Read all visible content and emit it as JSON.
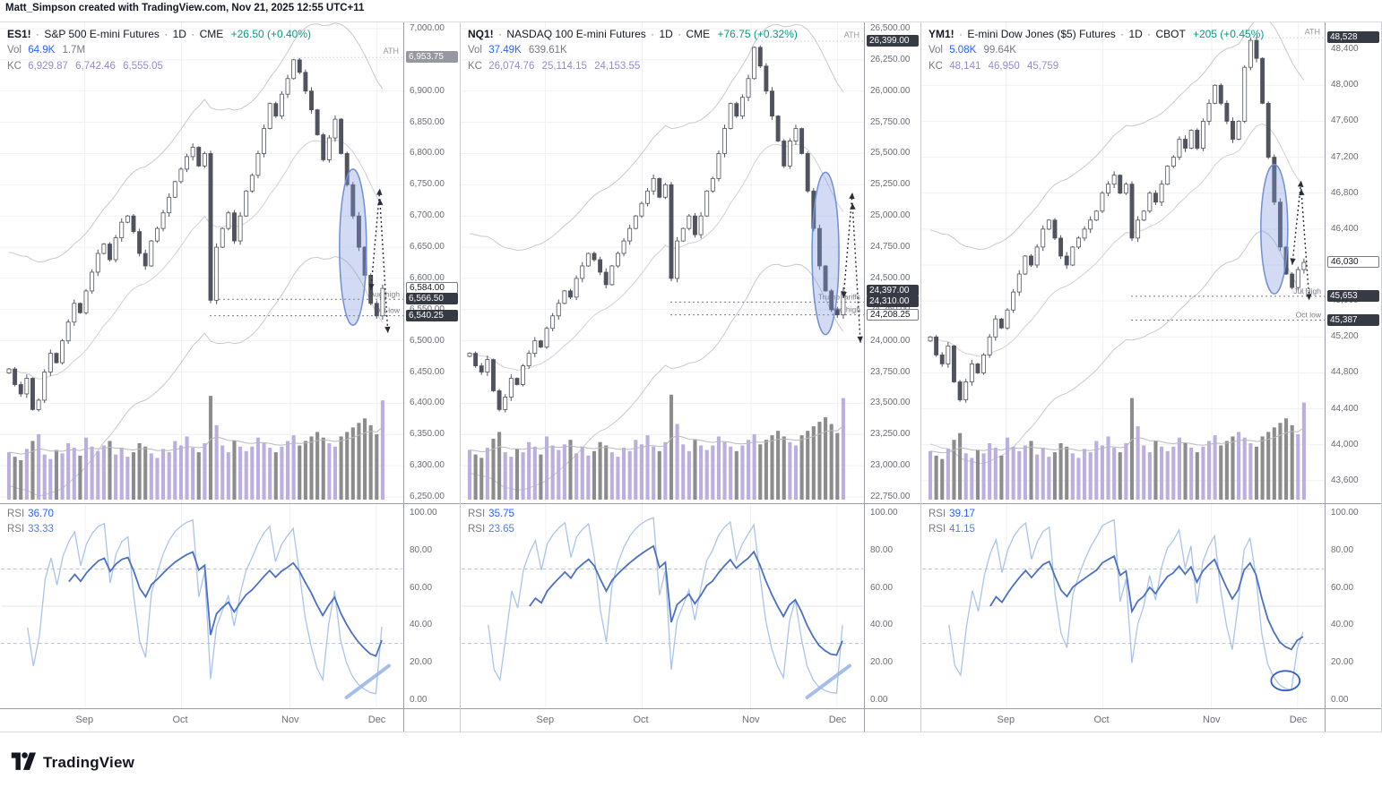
{
  "watermark": "Matt_Simpson created with TradingView.com, Nov 21, 2025 12:55 UTC+11",
  "logo_text": "TradingView",
  "sep": "·",
  "time_labels": [
    "Sep",
    "Oct",
    "Nov",
    "Dec"
  ],
  "month_fracs": [
    0.21,
    0.45,
    0.72,
    0.935
  ],
  "rsi_axis_ticks": [
    100,
    80,
    60,
    40,
    20,
    0
  ],
  "panels": [
    {
      "id": "es",
      "header": {
        "symbol": "ES1!",
        "desc": "S&P 500 E-mini Futures",
        "interval": "1D",
        "exchange": "CME",
        "change": "+26.50 (+0.40%)"
      },
      "vol": {
        "label": "Vol",
        "value": "64.9K",
        "total": "1.7M"
      },
      "kc": {
        "label": "KC",
        "v1": "6,929.87",
        "v2": "6,742.46",
        "v3": "6,555.05"
      },
      "rsi": {
        "label1": "RSI",
        "value1": "36.70",
        "label2": "RSI",
        "value2": "33.33"
      },
      "chart_data": {
        "type": "candlestick+volume+rsi",
        "title": "ES1! S&P 500 E-mini Futures 1D CME",
        "axis": {
          "tick_start": 6250,
          "tick_end": 7000,
          "tick_step": 50,
          "map_min": 6240,
          "map_max": 7010,
          "decimals": 2
        },
        "closes": [
          6455,
          6430,
          6415,
          6440,
          6390,
          6405,
          6450,
          6480,
          6465,
          6500,
          6530,
          6560,
          6545,
          6580,
          6610,
          6640,
          6655,
          6630,
          6665,
          6690,
          6700,
          6675,
          6640,
          6620,
          6660,
          6680,
          6705,
          6730,
          6755,
          6775,
          6795,
          6810,
          6780,
          6800,
          6565,
          6650,
          6680,
          6705,
          6660,
          6700,
          6740,
          6765,
          6800,
          6840,
          6880,
          6860,
          6895,
          6920,
          6950,
          6930,
          6900,
          6870,
          6830,
          6790,
          6825,
          6855,
          6800,
          6750,
          6700,
          6650,
          6605,
          6560,
          6540,
          6584
        ],
        "volumes": [
          0.42,
          0.38,
          0.35,
          0.45,
          0.52,
          0.58,
          0.4,
          0.36,
          0.44,
          0.41,
          0.5,
          0.46,
          0.39,
          0.55,
          0.47,
          0.43,
          0.48,
          0.52,
          0.4,
          0.46,
          0.38,
          0.42,
          0.5,
          0.47,
          0.41,
          0.37,
          0.45,
          0.42,
          0.52,
          0.48,
          0.56,
          0.46,
          0.42,
          0.5,
          0.92,
          0.66,
          0.48,
          0.42,
          0.52,
          0.47,
          0.43,
          0.47,
          0.55,
          0.5,
          0.46,
          0.42,
          0.47,
          0.52,
          0.57,
          0.48,
          0.52,
          0.56,
          0.6,
          0.55,
          0.5,
          0.47,
          0.56,
          0.6,
          0.64,
          0.68,
          0.72,
          0.66,
          0.58,
          0.88
        ],
        "kc_half": 187,
        "ath": {
          "price": 6953.75,
          "index": 48,
          "label": "ATH"
        },
        "levels": [
          {
            "price": 6566.5,
            "label": "Aug high"
          },
          {
            "price": 6540.25,
            "label": "Oct low"
          }
        ],
        "badges": [
          {
            "text": "6,953.75",
            "price": 6953.75,
            "style": "gray"
          },
          {
            "text": "6,584.00",
            "price": 6584,
            "style": "light"
          },
          {
            "text": "6,566.50",
            "price": 6566.5,
            "style": "dark"
          },
          {
            "text": "6,540.25",
            "price": 6540.25,
            "style": "dark"
          }
        ],
        "rsi_values": {
          "fast": 36.7,
          "slow": 33.33
        },
        "annotations": {
          "ellipse": {
            "index": 58,
            "price": 6650,
            "half": 125
          },
          "arrows": true,
          "rsi_mark": "trendline"
        }
      }
    },
    {
      "id": "nq",
      "header": {
        "symbol": "NQ1!",
        "desc": "NASDAQ 100 E-mini Futures",
        "interval": "1D",
        "exchange": "CME",
        "change": "+76.75 (+0.32%)"
      },
      "vol": {
        "label": "Vol",
        "value": "37.49K",
        "total": "639.61K"
      },
      "kc": {
        "label": "KC",
        "v1": "26,074.76",
        "v2": "25,114.15",
        "v3": "24,153.55"
      },
      "rsi": {
        "label1": "RSI",
        "value1": "35.75",
        "label2": "RSI",
        "value2": "23.65"
      },
      "chart_data": {
        "type": "candlestick+volume+rsi",
        "title": "NQ1! NASDAQ 100 E-mini Futures 1D CME",
        "axis": {
          "tick_start": 22750,
          "tick_end": 26500,
          "tick_step": 250,
          "map_min": 22700,
          "map_max": 26550,
          "decimals": 2
        },
        "closes": [
          23900,
          23800,
          23750,
          23850,
          23600,
          23450,
          23550,
          23700,
          23650,
          23800,
          23900,
          24000,
          23950,
          24100,
          24200,
          24300,
          24400,
          24350,
          24500,
          24600,
          24700,
          24650,
          24550,
          24450,
          24600,
          24700,
          24800,
          24900,
          25000,
          25100,
          25200,
          25300,
          25150,
          25250,
          24500,
          24800,
          24900,
          25000,
          24850,
          25000,
          25200,
          25300,
          25500,
          25700,
          25900,
          25800,
          25950,
          26100,
          26350,
          26200,
          26000,
          25800,
          25600,
          25400,
          25600,
          25700,
          25500,
          25200,
          24900,
          24600,
          24400,
          24250,
          24208,
          24397
        ],
        "volumes": [
          0.44,
          0.4,
          0.37,
          0.46,
          0.54,
          0.6,
          0.42,
          0.38,
          0.45,
          0.42,
          0.51,
          0.47,
          0.4,
          0.56,
          0.48,
          0.44,
          0.49,
          0.53,
          0.41,
          0.47,
          0.39,
          0.43,
          0.51,
          0.48,
          0.42,
          0.38,
          0.46,
          0.43,
          0.53,
          0.49,
          0.57,
          0.47,
          0.43,
          0.51,
          0.93,
          0.67,
          0.49,
          0.43,
          0.53,
          0.48,
          0.44,
          0.48,
          0.56,
          0.51,
          0.47,
          0.43,
          0.48,
          0.53,
          0.58,
          0.49,
          0.53,
          0.57,
          0.61,
          0.56,
          0.51,
          0.48,
          0.57,
          0.61,
          0.65,
          0.69,
          0.73,
          0.67,
          0.59,
          0.9
        ],
        "kc_half": 960,
        "ath": {
          "price": 26399,
          "index": 48,
          "label": "ATH"
        },
        "levels": [
          {
            "price": 24310,
            "label": "Trump tariffs"
          },
          {
            "price": 24208.25,
            "label": "Aug high"
          }
        ],
        "badges": [
          {
            "text": "26,399.00",
            "price": 26399,
            "style": "dark"
          },
          {
            "text": "24,397.00",
            "price": 24397,
            "style": "dark"
          },
          {
            "text": "24,310.00",
            "price": 24310,
            "style": "dark"
          },
          {
            "text": "24,208.25",
            "price": 24208.25,
            "style": "light"
          }
        ],
        "rsi_values": {
          "fast": 35.75,
          "slow": 23.65
        },
        "annotations": {
          "ellipse": {
            "index": 60,
            "price": 24700,
            "half": 650
          },
          "arrows": true,
          "rsi_mark": "trendline"
        }
      }
    },
    {
      "id": "ym",
      "header": {
        "symbol": "YM1!",
        "desc": "E-mini Dow Jones ($5) Futures",
        "interval": "1D",
        "exchange": "CBOT",
        "change": "+205 (+0.45%)"
      },
      "vol": {
        "label": "Vol",
        "value": "5.08K",
        "total": "99.64K"
      },
      "kc": {
        "label": "KC",
        "v1": "48,141",
        "v2": "46,950",
        "v3": "45,759"
      },
      "rsi": {
        "label1": "RSI",
        "value1": "39.17",
        "label2": "RSI",
        "value2": "41.15"
      },
      "chart_data": {
        "type": "candlestick+volume+rsi",
        "title": "YM1! E-mini Dow Jones ($5) Futures 1D CBOT",
        "axis": {
          "tick_start": 43600,
          "tick_end": 48400,
          "tick_step": 400,
          "map_min": 43350,
          "map_max": 48700,
          "decimals": 0
        },
        "closes": [
          45200,
          45000,
          44900,
          45100,
          44700,
          44500,
          44700,
          44900,
          44800,
          45000,
          45200,
          45400,
          45300,
          45500,
          45700,
          45900,
          46100,
          46000,
          46200,
          46400,
          46500,
          46300,
          46100,
          46000,
          46200,
          46300,
          46400,
          46500,
          46600,
          46800,
          46900,
          47000,
          46800,
          46900,
          46300,
          46500,
          46600,
          46800,
          46700,
          46900,
          47100,
          47200,
          47400,
          47300,
          47500,
          47300,
          47600,
          47800,
          48000,
          47800,
          47600,
          47400,
          47600,
          48200,
          48500,
          48300,
          47800,
          47200,
          46700,
          46200,
          45900,
          45750,
          45950,
          46030
        ],
        "volumes": [
          0.43,
          0.39,
          0.36,
          0.45,
          0.53,
          0.59,
          0.41,
          0.37,
          0.44,
          0.41,
          0.5,
          0.46,
          0.39,
          0.55,
          0.47,
          0.43,
          0.48,
          0.52,
          0.4,
          0.46,
          0.38,
          0.42,
          0.5,
          0.47,
          0.41,
          0.37,
          0.45,
          0.42,
          0.52,
          0.48,
          0.56,
          0.46,
          0.42,
          0.5,
          0.9,
          0.65,
          0.48,
          0.42,
          0.52,
          0.47,
          0.43,
          0.47,
          0.55,
          0.5,
          0.46,
          0.42,
          0.47,
          0.52,
          0.57,
          0.48,
          0.52,
          0.56,
          0.6,
          0.55,
          0.5,
          0.47,
          0.56,
          0.6,
          0.64,
          0.68,
          0.72,
          0.66,
          0.58,
          0.86
        ],
        "kc_half": 1191,
        "ath": {
          "price": 48528,
          "index": 54,
          "label": "ATH"
        },
        "levels": [
          {
            "price": 45653,
            "label": "Jul High"
          },
          {
            "price": 45387,
            "label": "Oct low"
          }
        ],
        "badges": [
          {
            "text": "48,528",
            "price": 48528,
            "style": "dark"
          },
          {
            "text": "46,030",
            "price": 46030,
            "style": "light"
          },
          {
            "text": "45,653",
            "price": 45653,
            "style": "dark"
          },
          {
            "text": "45,387",
            "price": 45387,
            "style": "dark"
          }
        ],
        "rsi_values": {
          "fast": 39.17,
          "slow": 41.15
        },
        "annotations": {
          "ellipse": {
            "index": 58,
            "price": 46400,
            "half": 720
          },
          "arrows": true,
          "rsi_mark": "ellipse"
        }
      }
    }
  ]
}
